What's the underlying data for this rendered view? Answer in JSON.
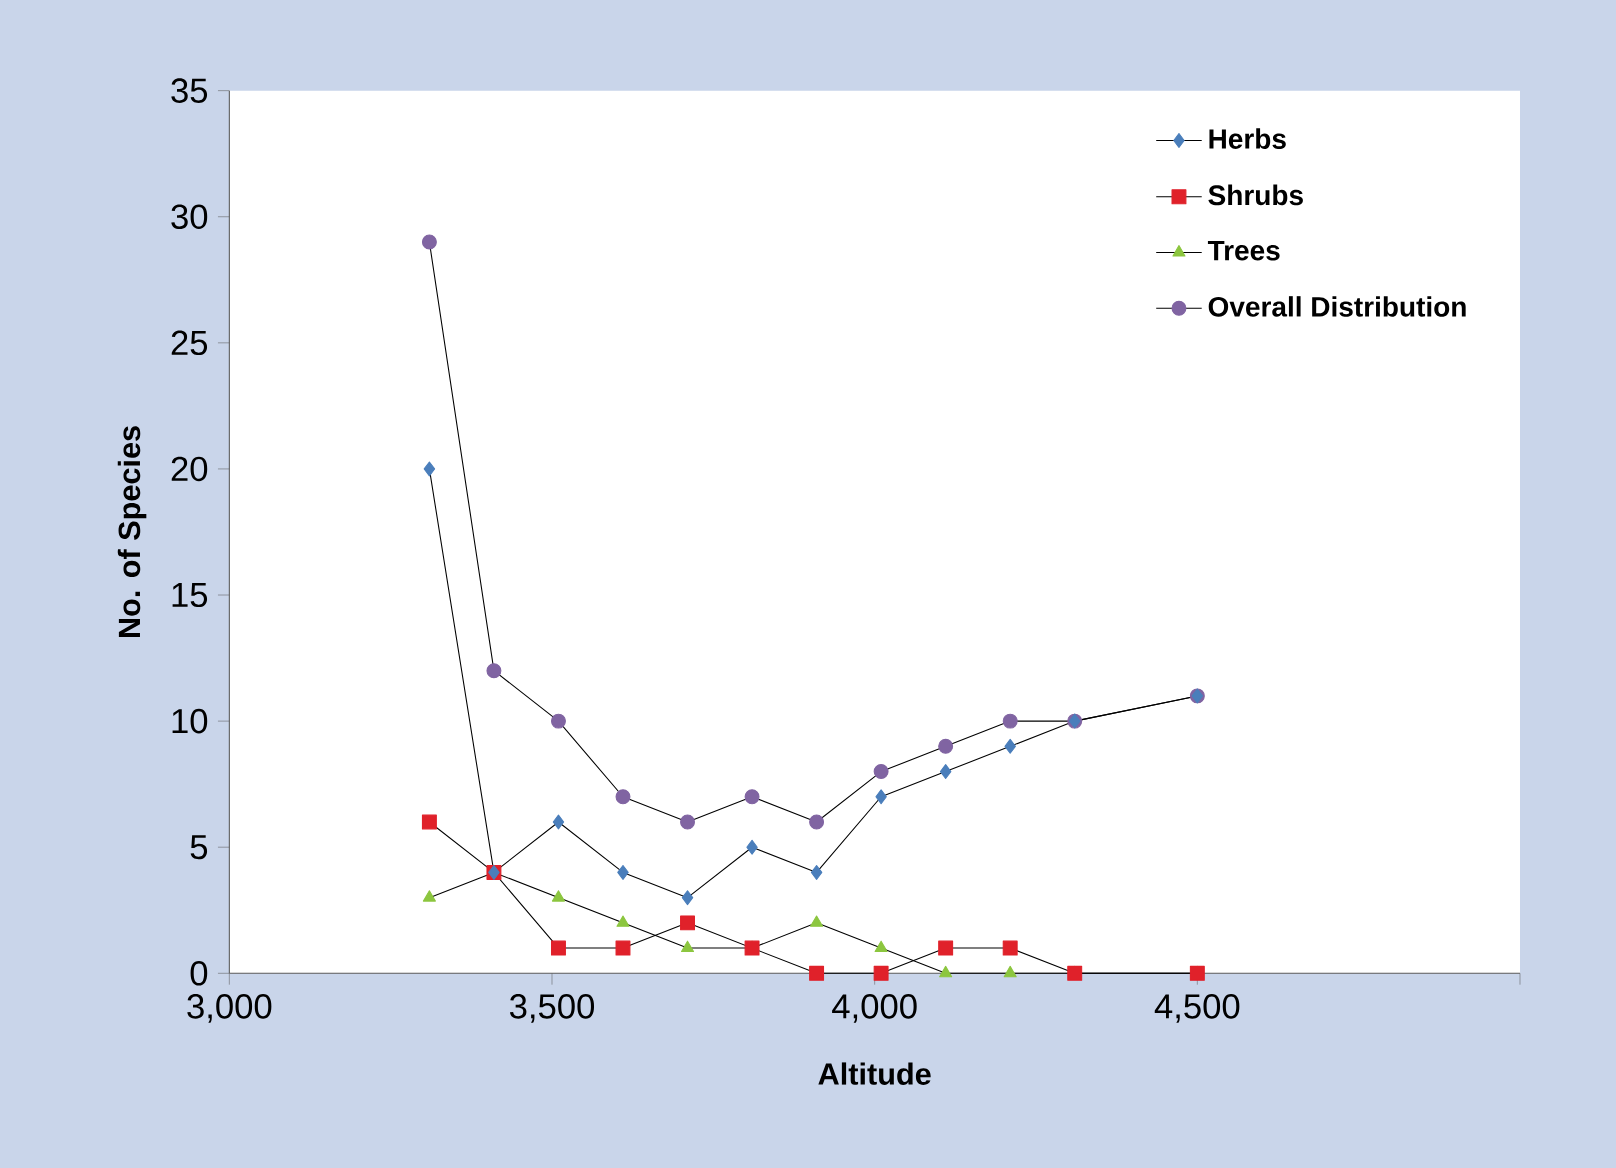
{
  "chart_data": {
    "type": "line",
    "xlabel": "Altitude",
    "ylabel": "No. of Species",
    "x": [
      3310,
      3410,
      3510,
      3610,
      3710,
      3810,
      3910,
      4010,
      4110,
      4210,
      4310,
      4500
    ],
    "series": [
      {
        "name": "Herbs",
        "color": "#4a7ebb",
        "marker": "diamond",
        "values": [
          20,
          4,
          6,
          4,
          3,
          5,
          4,
          7,
          8,
          9,
          10,
          11
        ]
      },
      {
        "name": "Shrubs",
        "color": "#e0212a",
        "marker": "square",
        "values": [
          6,
          4,
          1,
          1,
          2,
          1,
          0,
          0,
          1,
          1,
          0,
          0
        ]
      },
      {
        "name": "Trees",
        "color": "#8cc63f",
        "marker": "triangle",
        "values": [
          3,
          4,
          3,
          2,
          1,
          1,
          2,
          1,
          0,
          0,
          0,
          0
        ]
      },
      {
        "name": "Overall Distribution",
        "color": "#8064a2",
        "marker": "circle",
        "values": [
          29,
          12,
          10,
          7,
          6,
          7,
          6,
          8,
          9,
          10,
          10,
          11
        ]
      }
    ],
    "xlim": [
      3000,
      5000
    ],
    "xticks": [
      {
        "value": 3000,
        "label": "3,000"
      },
      {
        "value": 3500,
        "label": "3,500"
      },
      {
        "value": 4000,
        "label": "4,000"
      },
      {
        "value": 4500,
        "label": "4,500"
      },
      {
        "value": 5000,
        "label": null
      }
    ],
    "ylim": [
      0,
      35
    ],
    "yticks": [
      0,
      5,
      10,
      15,
      20,
      25,
      30,
      35
    ],
    "grid": false,
    "legend": "top right",
    "line_style": "solid"
  }
}
